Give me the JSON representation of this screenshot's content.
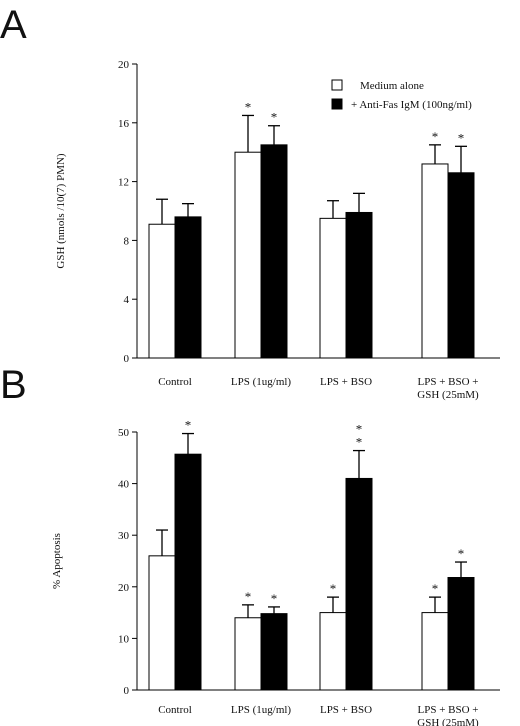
{
  "chart_data": [
    {
      "panel": "A",
      "type": "bar",
      "ylabel": "GSH (nmols /10(7) PMN)",
      "ylim": [
        0,
        20
      ],
      "yticks": [
        0,
        4,
        8,
        12,
        16,
        20
      ],
      "categories": [
        [
          "Control"
        ],
        [
          "LPS (1ug/ml)"
        ],
        [
          "LPS + BSO"
        ],
        [
          "LPS + BSO +",
          "GSH (25mM)"
        ]
      ],
      "legend": {
        "placement": "top-right"
      },
      "series": [
        {
          "name": "Medium alone",
          "color": "#ffffff",
          "values": [
            9.1,
            14.0,
            9.5,
            13.2
          ],
          "errors": [
            1.7,
            2.5,
            1.2,
            1.3
          ],
          "stars": [
            0,
            1,
            0,
            1
          ]
        },
        {
          "name": "+ Anti-Fas IgM (100ng/ml)",
          "color": "#000000",
          "values": [
            9.6,
            14.5,
            9.9,
            12.6
          ],
          "errors": [
            0.9,
            1.3,
            1.3,
            1.8
          ],
          "stars": [
            0,
            1,
            0,
            1
          ]
        }
      ]
    },
    {
      "panel": "B",
      "type": "bar",
      "ylabel": "% Apoptosis",
      "ylim": [
        0,
        50
      ],
      "yticks": [
        0,
        10,
        20,
        30,
        40,
        50
      ],
      "categories": [
        [
          "Control"
        ],
        [
          "LPS (1ug/ml)"
        ],
        [
          "LPS + BSO"
        ],
        [
          "LPS + BSO +",
          "GSH (25mM)"
        ]
      ],
      "series": [
        {
          "name": "Medium alone",
          "color": "#ffffff",
          "values": [
            26,
            14,
            15,
            15
          ],
          "errors": [
            5,
            2.5,
            3,
            3
          ],
          "stars": [
            0,
            1,
            1,
            1
          ]
        },
        {
          "name": "+ Anti-Fas IgM (100ng/ml)",
          "color": "#000000",
          "values": [
            45.7,
            14.8,
            41,
            21.8
          ],
          "errors": [
            4,
            1.3,
            5.4,
            3
          ],
          "stars": [
            1,
            1,
            2,
            1
          ]
        }
      ]
    }
  ],
  "panel_labels": [
    "A",
    "B"
  ]
}
